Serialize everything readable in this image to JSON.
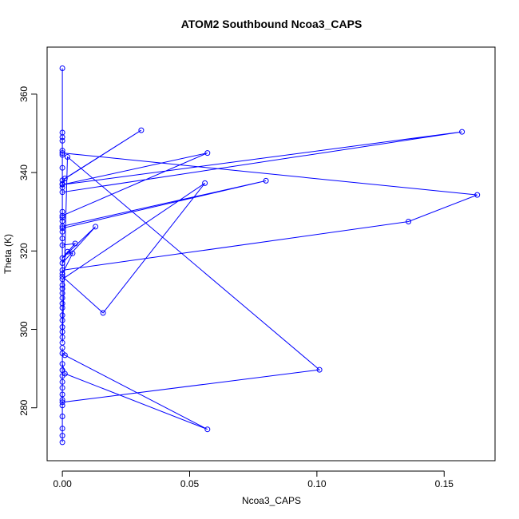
{
  "chart_data": {
    "type": "scatter",
    "title": "ATOM2 Southbound Ncoa3_CAPS",
    "xlabel": "Ncoa3_CAPS",
    "ylabel": "Theta (K)",
    "xlim": [
      -0.006,
      0.17
    ],
    "ylim": [
      266.5,
      372.0
    ],
    "xticks": [
      0.0,
      0.05,
      0.1,
      0.15
    ],
    "xtick_labels": [
      "0.00",
      "0.05",
      "0.10",
      "0.15"
    ],
    "yticks": [
      280,
      300,
      320,
      340,
      360
    ],
    "ytick_labels": [
      "280",
      "300",
      "320",
      "340",
      "360"
    ],
    "grid": false,
    "legend": "none",
    "series": [
      {
        "color": "#0000ff",
        "marker": "open-circle",
        "connected": true,
        "points": [
          [
            0.0,
            366.6
          ],
          [
            0.0,
            350.2
          ],
          [
            0.0,
            349.0
          ],
          [
            0.0,
            348.1
          ],
          [
            0.0,
            345.6
          ],
          [
            0.0,
            344.5
          ],
          [
            0.0,
            341.2
          ],
          [
            0.0,
            338.0
          ],
          [
            0.031,
            350.8
          ],
          [
            0.001,
            338.5
          ],
          [
            0.0,
            337.1
          ],
          [
            0.0,
            336.2
          ],
          [
            0.0,
            335.0
          ],
          [
            0.157,
            350.4
          ],
          [
            0.0,
            336.9
          ],
          [
            0.057,
            345.0
          ],
          [
            0.0,
            329.0
          ],
          [
            0.0,
            327.6
          ],
          [
            0.0,
            326.3
          ],
          [
            0.08,
            337.9
          ],
          [
            0.0,
            325.8
          ],
          [
            0.0,
            330.0
          ],
          [
            0.0,
            328.5
          ],
          [
            0.0,
            324.9
          ],
          [
            0.0,
            323.2
          ],
          [
            0.0,
            321.5
          ],
          [
            0.005,
            321.9
          ],
          [
            0.0,
            318.2
          ],
          [
            0.013,
            326.2
          ],
          [
            0.0,
            316.9
          ],
          [
            0.002,
            319.8
          ],
          [
            0.004,
            319.4
          ],
          [
            0.0,
            314.2
          ],
          [
            0.0,
            315.1
          ],
          [
            0.136,
            327.5
          ],
          [
            0.163,
            334.3
          ],
          [
            0.0,
            345.0
          ],
          [
            0.0,
            313.5
          ],
          [
            0.016,
            304.2
          ],
          [
            0.056,
            337.3
          ],
          [
            0.0,
            312.8
          ],
          [
            0.0,
            311.3
          ],
          [
            0.0,
            310.4
          ],
          [
            0.0,
            309.2
          ],
          [
            0.0,
            308.0
          ],
          [
            0.0,
            306.6
          ],
          [
            0.0,
            305.5
          ],
          [
            0.0,
            303.6
          ],
          [
            0.0,
            302.3
          ],
          [
            0.0,
            300.6
          ],
          [
            0.0,
            299.4
          ],
          [
            0.0,
            298.0
          ],
          [
            0.0,
            296.6
          ],
          [
            0.002,
            344.0
          ],
          [
            0.101,
            289.7
          ],
          [
            0.0,
            281.4
          ],
          [
            0.0,
            295.3
          ],
          [
            0.0,
            293.9
          ],
          [
            0.001,
            293.4
          ],
          [
            0.057,
            274.5
          ],
          [
            0.001,
            288.7
          ],
          [
            0.0,
            291.2
          ],
          [
            0.0,
            289.6
          ],
          [
            0.0,
            288.1
          ],
          [
            0.0,
            286.6
          ],
          [
            0.0,
            285.1
          ],
          [
            0.0,
            283.4
          ],
          [
            0.0,
            282.0
          ],
          [
            0.0,
            280.6
          ],
          [
            0.0,
            277.8
          ],
          [
            0.0,
            274.7
          ],
          [
            0.0,
            272.9
          ],
          [
            0.0,
            271.2
          ]
        ]
      }
    ]
  }
}
